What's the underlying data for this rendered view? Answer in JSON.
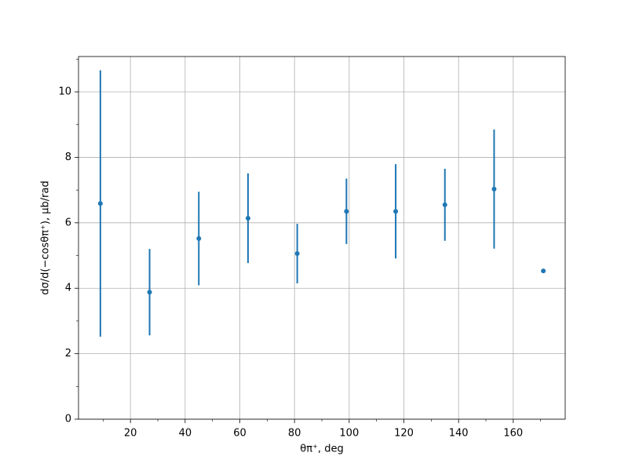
{
  "chart_data": {
    "type": "errorbar",
    "xlabel": "θπ⁺, deg",
    "ylabel": "dσ/d(−cosθπ⁺), μb/rad",
    "x": [
      9,
      27,
      45,
      63,
      81,
      99,
      117,
      135,
      153,
      171
    ],
    "series": [
      {
        "color": "#1f77b4",
        "values": [
          6.59,
          3.88,
          5.52,
          6.14,
          5.06,
          6.35,
          6.35,
          6.55,
          7.03,
          4.53
        ],
        "errors": [
          4.07,
          1.32,
          1.43,
          1.37,
          0.91,
          1.0,
          1.44,
          1.1,
          1.82,
          0
        ]
      }
    ],
    "xlim": [
      1,
      179
    ],
    "ylim": [
      0,
      11.08
    ],
    "xticks": [
      20,
      40,
      60,
      80,
      100,
      120,
      140,
      160
    ],
    "yticks": [
      0,
      2,
      4,
      6,
      8,
      10
    ],
    "xminorticks": [
      10,
      30,
      50,
      70,
      90,
      110,
      130,
      150,
      170
    ],
    "yminorticks": [
      1,
      3,
      5,
      7,
      9,
      11
    ],
    "grid": true
  }
}
